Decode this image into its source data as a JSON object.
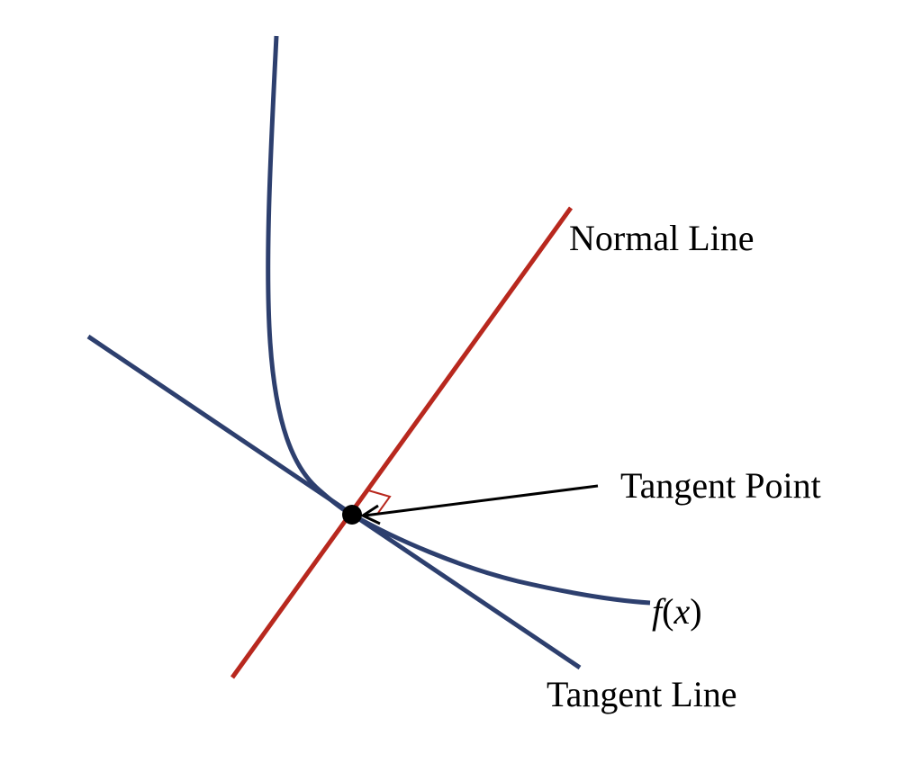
{
  "labels": {
    "normal_line": "Normal Line",
    "tangent_point": "Tangent Point",
    "tangent_line": "Tangent Line",
    "function_name": "f",
    "function_paren_open": "(",
    "function_variable": "x",
    "function_paren_close": ")"
  },
  "colors": {
    "curve": "#2d3f6e",
    "tangent_line": "#2d3f6e",
    "normal_line": "#b8281e",
    "right_angle_marker": "#b8281e",
    "point": "#000000",
    "arrow": "#000000",
    "text": "#000000"
  }
}
